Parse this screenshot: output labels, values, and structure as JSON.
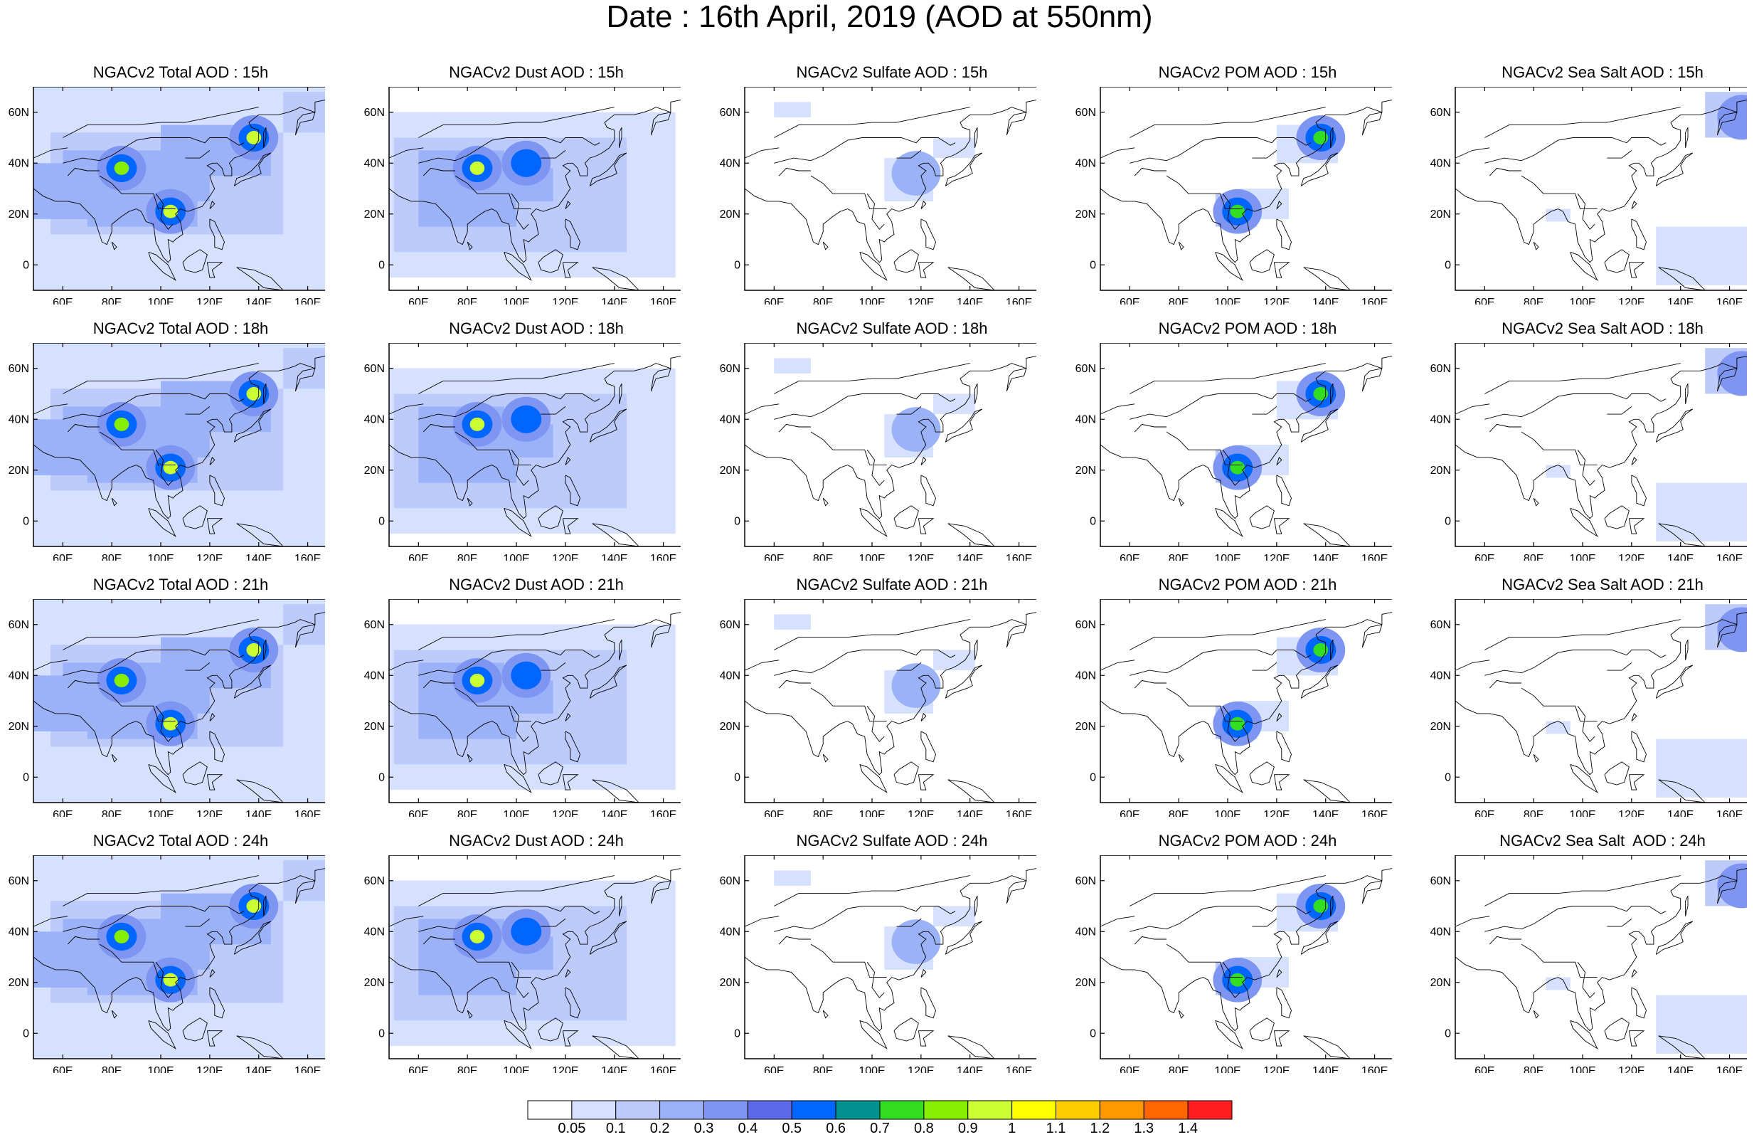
{
  "title": "Date : 16th April, 2019 (AOD at 550nm)",
  "panels": [
    {
      "title": "NGACv2 Total AOD : 15h",
      "species": "total",
      "hour": 15
    },
    {
      "title": "NGACv2 Dust AOD : 15h",
      "species": "dust",
      "hour": 15
    },
    {
      "title": "NGACv2 Sulfate AOD : 15h",
      "species": "sulfate",
      "hour": 15
    },
    {
      "title": "NGACv2 POM AOD : 15h",
      "species": "pom",
      "hour": 15
    },
    {
      "title": "NGACv2 Sea Salt AOD : 15h",
      "species": "seasalt",
      "hour": 15
    },
    {
      "title": "NGACv2 Total AOD : 18h",
      "species": "total",
      "hour": 18
    },
    {
      "title": "NGACv2 Dust AOD : 18h",
      "species": "dust",
      "hour": 18
    },
    {
      "title": "NGACv2 Sulfate AOD : 18h",
      "species": "sulfate",
      "hour": 18
    },
    {
      "title": "NGACv2 POM AOD : 18h",
      "species": "pom",
      "hour": 18
    },
    {
      "title": "NGACv2 Sea Salt AOD : 18h",
      "species": "seasalt",
      "hour": 18
    },
    {
      "title": "NGACv2 Total AOD : 21h",
      "species": "total",
      "hour": 21
    },
    {
      "title": "NGACv2 Dust AOD : 21h",
      "species": "dust",
      "hour": 21
    },
    {
      "title": "NGACv2 Sulfate AOD : 21h",
      "species": "sulfate",
      "hour": 21
    },
    {
      "title": "NGACv2 POM AOD : 21h",
      "species": "pom",
      "hour": 21
    },
    {
      "title": "NGACv2 Sea Salt AOD : 21h",
      "species": "seasalt",
      "hour": 21
    },
    {
      "title": "NGACv2 Total AOD : 24h",
      "species": "total",
      "hour": 24
    },
    {
      "title": "NGACv2 Dust AOD : 24h",
      "species": "dust",
      "hour": 24
    },
    {
      "title": "NGACv2 Sulfate AOD : 24h",
      "species": "sulfate",
      "hour": 24
    },
    {
      "title": "NGACv2 POM AOD : 24h",
      "species": "pom",
      "hour": 24
    },
    {
      "title": "NGACv2 Sea Salt  AOD : 24h",
      "species": "seasalt",
      "hour": 24
    }
  ],
  "chart_data": {
    "type": "heatmap",
    "map_extent": {
      "lon": [
        48,
        170
      ],
      "lat": [
        -10,
        70
      ]
    },
    "x_ticks": [
      60,
      80,
      100,
      120,
      140,
      160
    ],
    "x_tick_labels": [
      "60E",
      "80E",
      "100E",
      "120E",
      "140E",
      "160E"
    ],
    "y_ticks": [
      0,
      20,
      40,
      60
    ],
    "y_tick_labels": [
      "0",
      "20N",
      "40N",
      "60N"
    ],
    "colorbar": {
      "levels": [
        0.05,
        0.1,
        0.2,
        0.3,
        0.4,
        0.5,
        0.6,
        0.7,
        0.8,
        0.9,
        1,
        1.1,
        1.2,
        1.3,
        1.4
      ],
      "labels": [
        "0.05",
        "0.1",
        "0.2",
        "0.3",
        "0.4",
        "0.5",
        "0.6",
        "0.7",
        "0.8",
        "0.9",
        "1",
        "1.1",
        "1.2",
        "1.3",
        "1.4"
      ],
      "colors": [
        "#ffffff",
        "#d6e0ff",
        "#bccafc",
        "#9cb2f8",
        "#7f95f2",
        "#5c6ae8",
        "#0066ff",
        "#00908f",
        "#33dd22",
        "#88ee00",
        "#ccff33",
        "#ffff00",
        "#ffcc00",
        "#ff9900",
        "#ff6600",
        "#ff1e1e"
      ]
    },
    "hotspots": {
      "total": [
        {
          "lon": 84,
          "lat": 38,
          "aod": 0.85
        },
        {
          "lon": 104,
          "lat": 21,
          "aod": 0.9
        },
        {
          "lon": 138,
          "lat": 50,
          "aod": 0.95
        }
      ],
      "dust": [
        {
          "lon": 84,
          "lat": 38,
          "aod": 0.9
        },
        {
          "lon": 104,
          "lat": 40,
          "aod": 0.55
        }
      ],
      "sulfate": [
        {
          "lon": 118,
          "lat": 36,
          "aod": 0.25
        }
      ],
      "pom": [
        {
          "lon": 104,
          "lat": 21,
          "aod": 0.7
        },
        {
          "lon": 138,
          "lat": 50,
          "aod": 0.75
        }
      ],
      "seasalt": [
        {
          "lon": 165,
          "lat": 58,
          "aod": 0.3
        }
      ]
    }
  }
}
